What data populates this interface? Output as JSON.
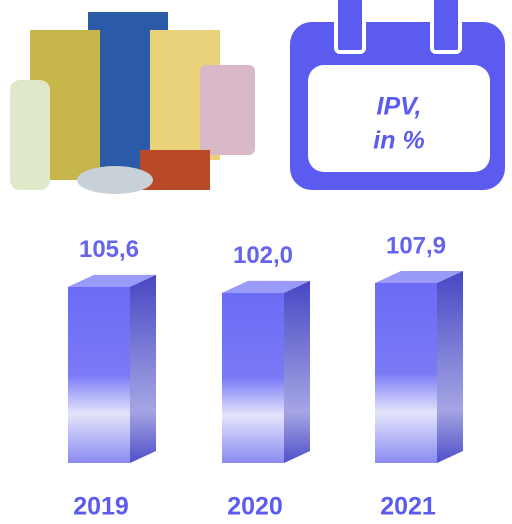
{
  "chart_data": {
    "type": "bar3d",
    "title": [
      "IPV,",
      "in %"
    ],
    "categories": [
      "2019",
      "2020",
      "2021"
    ],
    "values": [
      105.6,
      102.0,
      107.9
    ],
    "value_labels": [
      "105,6",
      "102,0",
      "107,9"
    ],
    "color": "#6b6bf5"
  }
}
